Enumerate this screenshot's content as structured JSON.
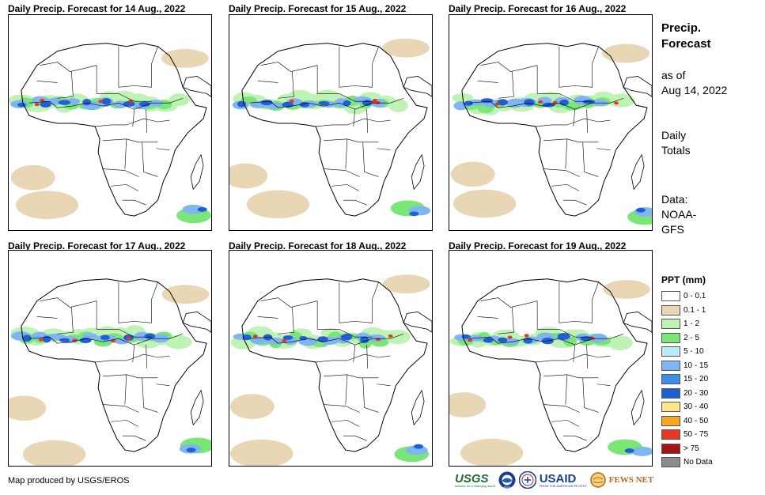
{
  "panels": [
    {
      "title": "Daily Precip. Forecast for 14 Aug., 2022"
    },
    {
      "title": "Daily Precip. Forecast for 15 Aug., 2022"
    },
    {
      "title": "Daily Precip. Forecast for 16 Aug., 2022"
    },
    {
      "title": "Daily Precip. Forecast for 17 Aug., 2022"
    },
    {
      "title": "Daily Precip. Forecast for 18 Aug., 2022"
    },
    {
      "title": "Daily Precip. Forecast for 19 Aug., 2022"
    }
  ],
  "side": {
    "title_line1": "Precip.",
    "title_line2": "Forecast",
    "asof_line1": "as of",
    "asof_line2": "Aug 14, 2022",
    "totals_line1": "Daily",
    "totals_line2": "Totals",
    "data_line1": "Data:",
    "data_line2": "NOAA-",
    "data_line3": "GFS"
  },
  "legend": {
    "title": "PPT (mm)",
    "items": [
      {
        "label": "0 - 0.1",
        "color": "#ffffff"
      },
      {
        "label": "0.1 - 1",
        "color": "#e8d6b4"
      },
      {
        "label": "1 - 2",
        "color": "#bff3b5"
      },
      {
        "label": "2 - 5",
        "color": "#79e676"
      },
      {
        "label": "5 - 10",
        "color": "#b9ecf5"
      },
      {
        "label": "10 - 15",
        "color": "#80b6ef"
      },
      {
        "label": "15 - 20",
        "color": "#3d8ee6"
      },
      {
        "label": "20 - 30",
        "color": "#1f5fd6"
      },
      {
        "label": "30 - 40",
        "color": "#fde58a"
      },
      {
        "label": "40 - 50",
        "color": "#f5a623"
      },
      {
        "label": "50 - 75",
        "color": "#e8351e"
      },
      {
        "label": "> 75",
        "color": "#a01414"
      },
      {
        "label": "No Data",
        "color": "#8c8c8c"
      }
    ]
  },
  "footer": {
    "credit": "Map produced by USGS/EROS"
  },
  "logos": {
    "usgs": "USGS",
    "usgs_tagline": "science for a changing world",
    "noaa": "NOAA",
    "usaid": "USAID",
    "usaid_tagline": "FROM THE AMERICAN PEOPLE",
    "fews": "FEWS NET"
  }
}
